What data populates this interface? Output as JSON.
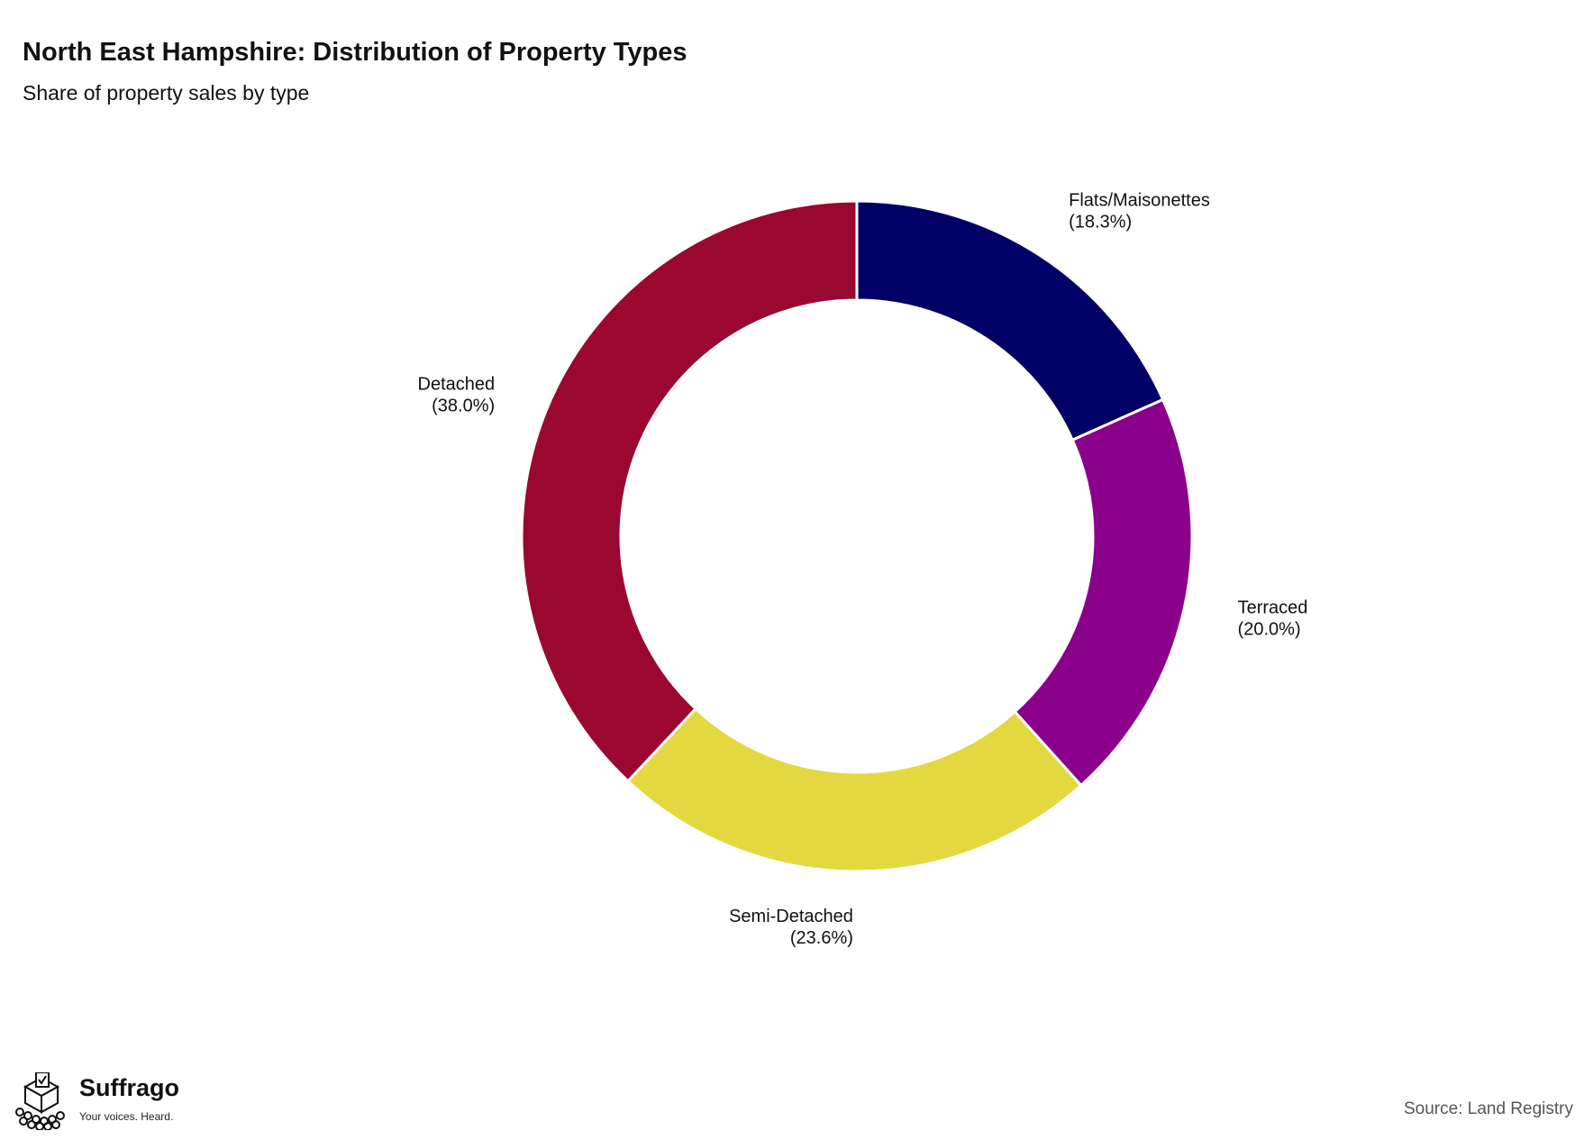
{
  "title": "North East Hampshire: Distribution of Property Types",
  "subtitle": "Share of property sales by type",
  "source": "Source: Land Registry",
  "brand": {
    "name": "Suffrago",
    "tagline": "Your voices. Heard.",
    "icon": "ballot-box-crowd-icon"
  },
  "chart_data": {
    "type": "pie",
    "donut": true,
    "title": "North East Hampshire: Distribution of Property Types",
    "subtitle": "Share of property sales by type",
    "categories": [
      "Flats/Maisonettes",
      "Terraced",
      "Semi-Detached",
      "Detached"
    ],
    "values": [
      18.3,
      20.0,
      23.6,
      38.0
    ],
    "percent_labels": [
      "(18.3%)",
      "(20.0%)",
      "(23.6%)",
      "(38.0%)"
    ],
    "colors": [
      "#000066",
      "#8b008b",
      "#e4d840",
      "#9a0830"
    ],
    "start": "12 o'clock",
    "direction": "clockwise",
    "legend": "none"
  }
}
